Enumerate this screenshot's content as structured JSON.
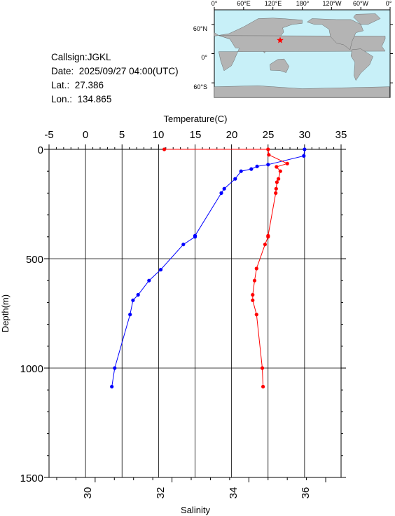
{
  "station": {
    "callsign_label": "Callsign:JGKL",
    "date_label": "Date:  2025/09/27 04:00(UTC)",
    "lat_label": "Lat.:  27.386",
    "lon_label": "Lon.:  134.865"
  },
  "map": {
    "top_labels": [
      "0°",
      "60°E",
      "120°E",
      "180°",
      "120°W",
      "60°W",
      "0°"
    ],
    "left_labels": [
      "60°N",
      "0°",
      "60°S"
    ],
    "ocean_color": "#c8f0f8",
    "land_color": "#b4b4b4",
    "marker_color": "#ff0000",
    "marker": {
      "lat": 27.386,
      "lon": 134.865
    }
  },
  "chart_data": {
    "type": "line",
    "xlabel_top": "Temperature(C)",
    "xlabel_bottom": "Salinity",
    "ylabel": "Depth(m)",
    "ylim": [
      1500,
      0
    ],
    "temperature_lim": [
      -5,
      35
    ],
    "salinity_lim": [
      28.8,
      36.4
    ],
    "temperature_ticks": [
      "-5",
      "0",
      "5",
      "10",
      "15",
      "20",
      "25",
      "30",
      "35"
    ],
    "salinity_ticks": [
      "30",
      "32",
      "34",
      "36"
    ],
    "depth_ticks": [
      "0",
      "500",
      "1000",
      "1500"
    ],
    "grid": true,
    "series": [
      {
        "quantity": "temperature",
        "color": "#0000ff",
        "points": [
          {
            "x": 30.0,
            "y": 0
          },
          {
            "x": 29.9,
            "y": 30
          },
          {
            "x": 25.0,
            "y": 70
          },
          {
            "x": 23.5,
            "y": 78
          },
          {
            "x": 22.7,
            "y": 90
          },
          {
            "x": 21.3,
            "y": 100
          },
          {
            "x": 20.5,
            "y": 135
          },
          {
            "x": 19.0,
            "y": 180
          },
          {
            "x": 18.6,
            "y": 200
          },
          {
            "x": 15.0,
            "y": 395
          },
          {
            "x": 15.0,
            "y": 400
          },
          {
            "x": 13.4,
            "y": 435
          },
          {
            "x": 10.3,
            "y": 550
          },
          {
            "x": 8.7,
            "y": 600
          },
          {
            "x": 7.2,
            "y": 665
          },
          {
            "x": 6.5,
            "y": 690
          },
          {
            "x": 6.1,
            "y": 755
          },
          {
            "x": 4.0,
            "y": 1000
          },
          {
            "x": 3.6,
            "y": 1085
          }
        ]
      },
      {
        "quantity": "salinity",
        "color": "#ff0000",
        "points": [
          {
            "x": 31.8,
            "y": 0
          },
          {
            "x": 34.5,
            "y": 0
          },
          {
            "x": 34.52,
            "y": 25
          },
          {
            "x": 35.0,
            "y": 65
          },
          {
            "x": 34.72,
            "y": 80
          },
          {
            "x": 34.82,
            "y": 100
          },
          {
            "x": 34.77,
            "y": 135
          },
          {
            "x": 34.73,
            "y": 150
          },
          {
            "x": 34.71,
            "y": 180
          },
          {
            "x": 34.7,
            "y": 200
          },
          {
            "x": 34.5,
            "y": 395
          },
          {
            "x": 34.5,
            "y": 400
          },
          {
            "x": 34.42,
            "y": 435
          },
          {
            "x": 34.2,
            "y": 545
          },
          {
            "x": 34.15,
            "y": 600
          },
          {
            "x": 34.1,
            "y": 665
          },
          {
            "x": 34.1,
            "y": 690
          },
          {
            "x": 34.2,
            "y": 755
          },
          {
            "x": 34.35,
            "y": 1000
          },
          {
            "x": 34.37,
            "y": 1085
          }
        ]
      }
    ]
  }
}
